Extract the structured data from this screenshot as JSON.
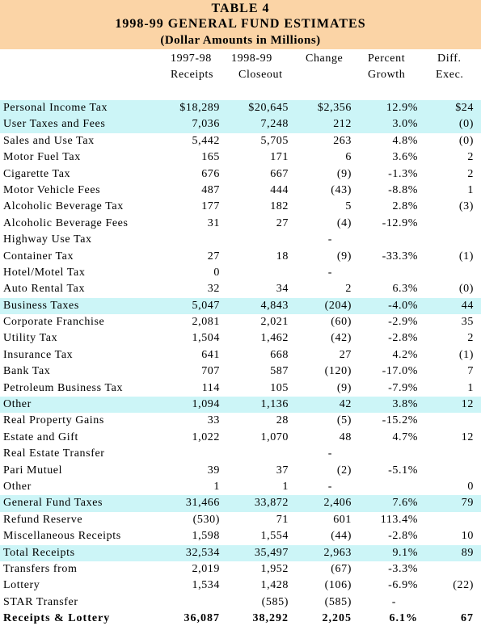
{
  "title": {
    "line1": "TABLE 4",
    "line2": "1998-99  GENERAL FUND ESTIMATES",
    "line3": "(Dollar Amounts in Millions)"
  },
  "columns": [
    {
      "line1": "1997-98",
      "line2": "Receipts"
    },
    {
      "line1": "1998-99",
      "line2": "Closeout"
    },
    {
      "line1": "Change",
      "line2": ""
    },
    {
      "line1": "Percent",
      "line2": "Growth"
    },
    {
      "line1": "Diff.",
      "line2": "Exec."
    }
  ],
  "rows": [
    {
      "label": "Personal Income Tax",
      "v1": "$18,289",
      "v2": "$20,645",
      "v3": "$2,356",
      "v4": "12.9%",
      "v5": "$24",
      "hl": true
    },
    {
      "label": "User Taxes and Fees",
      "v1": "7,036",
      "v2": "7,248",
      "v3": "212",
      "v4": "3.0%",
      "v5": "(0)",
      "hl": true
    },
    {
      "label": "Sales and Use Tax",
      "v1": "5,442",
      "v2": "5,705",
      "v3": "263",
      "v4": "4.8%",
      "v5": "(0)"
    },
    {
      "label": "Motor Fuel Tax",
      "v1": "165",
      "v2": "171",
      "v3": "6",
      "v4": "3.6%",
      "v5": "2"
    },
    {
      "label": "Cigarette Tax",
      "v1": "676",
      "v2": "667",
      "v3": "(9)",
      "v4": "-1.3%",
      "v5": "2"
    },
    {
      "label": "Motor Vehicle Fees",
      "v1": "487",
      "v2": "444",
      "v3": "(43)",
      "v4": "-8.8%",
      "v5": "1"
    },
    {
      "label": "Alcoholic Beverage Tax",
      "v1": "177",
      "v2": "182",
      "v3": "5",
      "v4": "2.8%",
      "v5": "(3)"
    },
    {
      "label": "Alcoholic Beverage Fees",
      "v1": "31",
      "v2": "27",
      "v3": "(4)",
      "v4": "-12.9%",
      "v5": ""
    },
    {
      "label": "Highway Use Tax",
      "v1": "",
      "v2": "",
      "v3": "-",
      "v4": "",
      "v5": "",
      "dash": true
    },
    {
      "label": "Container Tax",
      "v1": "27",
      "v2": "18",
      "v3": "(9)",
      "v4": "-33.3%",
      "v5": "(1)"
    },
    {
      "label": "Hotel/Motel Tax",
      "v1": "0",
      "v2": "",
      "v3": "-",
      "v4": "",
      "v5": "",
      "dash": true
    },
    {
      "label": "Auto Rental Tax",
      "v1": "32",
      "v2": "34",
      "v3": "2",
      "v4": "6.3%",
      "v5": "(0)"
    },
    {
      "label": "Business Taxes",
      "v1": "5,047",
      "v2": "4,843",
      "v3": "(204)",
      "v4": "-4.0%",
      "v5": "44",
      "hl": true
    },
    {
      "label": "Corporate Franchise",
      "v1": "2,081",
      "v2": "2,021",
      "v3": "(60)",
      "v4": "-2.9%",
      "v5": "35"
    },
    {
      "label": "Utility Tax",
      "v1": "1,504",
      "v2": "1,462",
      "v3": "(42)",
      "v4": "-2.8%",
      "v5": "2"
    },
    {
      "label": "Insurance Tax",
      "v1": "641",
      "v2": "668",
      "v3": "27",
      "v4": "4.2%",
      "v5": "(1)"
    },
    {
      "label": "Bank Tax",
      "v1": "707",
      "v2": "587",
      "v3": "(120)",
      "v4": "-17.0%",
      "v5": "7"
    },
    {
      "label": "Petroleum Business Tax",
      "v1": "114",
      "v2": "105",
      "v3": "(9)",
      "v4": "-7.9%",
      "v5": "1"
    },
    {
      "label": "Other",
      "v1": "1,094",
      "v2": "1,136",
      "v3": "42",
      "v4": "3.8%",
      "v5": "12",
      "hl": true
    },
    {
      "label": "Real Property Gains",
      "v1": "33",
      "v2": "28",
      "v3": "(5)",
      "v4": "-15.2%",
      "v5": ""
    },
    {
      "label": "Estate and Gift",
      "v1": "1,022",
      "v2": "1,070",
      "v3": "48",
      "v4": "4.7%",
      "v5": "12"
    },
    {
      "label": "Real Estate Transfer",
      "v1": "",
      "v2": "",
      "v3": "-",
      "v4": "",
      "v5": "",
      "dash": true
    },
    {
      "label": "Pari Mutuel",
      "v1": "39",
      "v2": "37",
      "v3": "(2)",
      "v4": "-5.1%",
      "v5": ""
    },
    {
      "label": "Other",
      "v1": "1",
      "v2": "1",
      "v3": "-",
      "v4": "",
      "v5": "0",
      "dash": true
    },
    {
      "label": "General Fund Taxes",
      "v1": "31,466",
      "v2": "33,872",
      "v3": "2,406",
      "v4": "7.6%",
      "v5": "79",
      "hl": true
    },
    {
      "label": "Refund Reserve",
      "v1": "(530)",
      "v2": "71",
      "v3": "601",
      "v4": "113.4%",
      "v5": ""
    },
    {
      "label": "Miscellaneous Receipts",
      "v1": "1,598",
      "v2": "1,554",
      "v3": "(44)",
      "v4": "-2.8%",
      "v5": "10"
    },
    {
      "label": "Total Receipts",
      "v1": "32,534",
      "v2": "35,497",
      "v3": "2,963",
      "v4": "9.1%",
      "v5": "89",
      "hl": true
    },
    {
      "label": "Transfers from",
      "v1": "2,019",
      "v2": "1,952",
      "v3": "(67)",
      "v4": "-3.3%",
      "v5": ""
    },
    {
      "label": "Lottery",
      "v1": "1,534",
      "v2": "1,428",
      "v3": "(106)",
      "v4": "-6.9%",
      "v5": "(22)"
    },
    {
      "label": "STAR Transfer",
      "v1": "",
      "v2": "(585)",
      "v3": "(585)",
      "v4": "-",
      "v5": "",
      "pdash": true
    },
    {
      "label": "Receipts & Lottery",
      "v1": "36,087",
      "v2": "38,292",
      "v3": "2,205",
      "v4": "6.1%",
      "v5": "67",
      "final": true
    }
  ]
}
